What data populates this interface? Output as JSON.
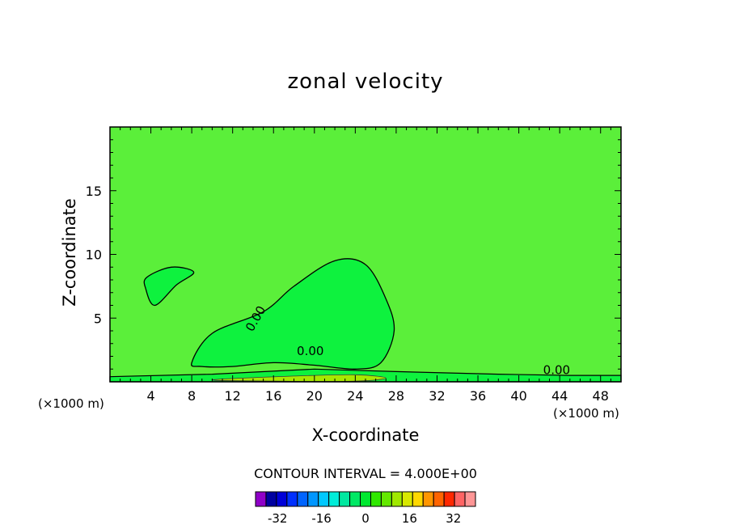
{
  "chart_data": {
    "type": "contour",
    "title": "zonal velocity",
    "xlabel": "X-coordinate",
    "ylabel": "Z-coordinate",
    "x_unit_note": "(×1000 m)",
    "xlim": [
      0,
      50
    ],
    "ylim": [
      0,
      20
    ],
    "x_ticks": [
      4,
      8,
      12,
      16,
      20,
      24,
      28,
      32,
      36,
      40,
      44,
      48
    ],
    "y_ticks": [
      5,
      10,
      15
    ],
    "contour_interval_text": "CONTOUR INTERVAL = 4.000E+00",
    "contour_labels": [
      "0.00",
      "0.00",
      "0.00"
    ],
    "colorbar": {
      "tick_labels": [
        "-32",
        "-16",
        "0",
        "16",
        "32"
      ],
      "tick_values": [
        -32,
        -16,
        0,
        16,
        32
      ],
      "levels": [
        -40,
        -36,
        -32,
        -28,
        -24,
        -20,
        -16,
        -12,
        -8,
        -4,
        0,
        4,
        8,
        12,
        16,
        20,
        24,
        28,
        32,
        36,
        40
      ],
      "colors": [
        "#8f00c8",
        "#0000a0",
        "#0000d8",
        "#0030ff",
        "#0064ff",
        "#0096ff",
        "#00c8ff",
        "#00ecd8",
        "#00e8a0",
        "#00e864",
        "#00e830",
        "#30e800",
        "#64e800",
        "#a0e800",
        "#d8e800",
        "#ffd800",
        "#ff9600",
        "#ff6400",
        "#ff2800",
        "#ff6464",
        "#ff9696"
      ]
    },
    "colors": {
      "background_field": "#5bef3a",
      "zero_region": "#0ef23e",
      "positive_band": "#a8e800",
      "frame": "#000000"
    },
    "regions": [
      {
        "name": "upper-left-blob",
        "x": [
          4.4,
          6.5,
          8.2,
          6.0,
          3.6,
          3.5
        ],
        "z": [
          6.0,
          7.6,
          8.6,
          9.0,
          8.2,
          7.3
        ]
      },
      {
        "name": "central-cell",
        "x": [
          8.0,
          10.0,
          15.0,
          18.0,
          22.0,
          25.0,
          27.0,
          27.8,
          26.5,
          24.0,
          20.0,
          16.0,
          12.0,
          9.0
        ],
        "z": [
          1.5,
          3.8,
          5.5,
          7.5,
          9.5,
          9.2,
          6.5,
          4.0,
          1.5,
          1.0,
          1.3,
          1.5,
          1.2,
          1.2
        ]
      },
      {
        "name": "surface-band",
        "x": [
          0,
          10,
          20,
          28,
          38,
          45,
          50
        ],
        "z": [
          0.4,
          0.6,
          1.0,
          0.8,
          0.6,
          0.5,
          0.5
        ]
      }
    ]
  }
}
